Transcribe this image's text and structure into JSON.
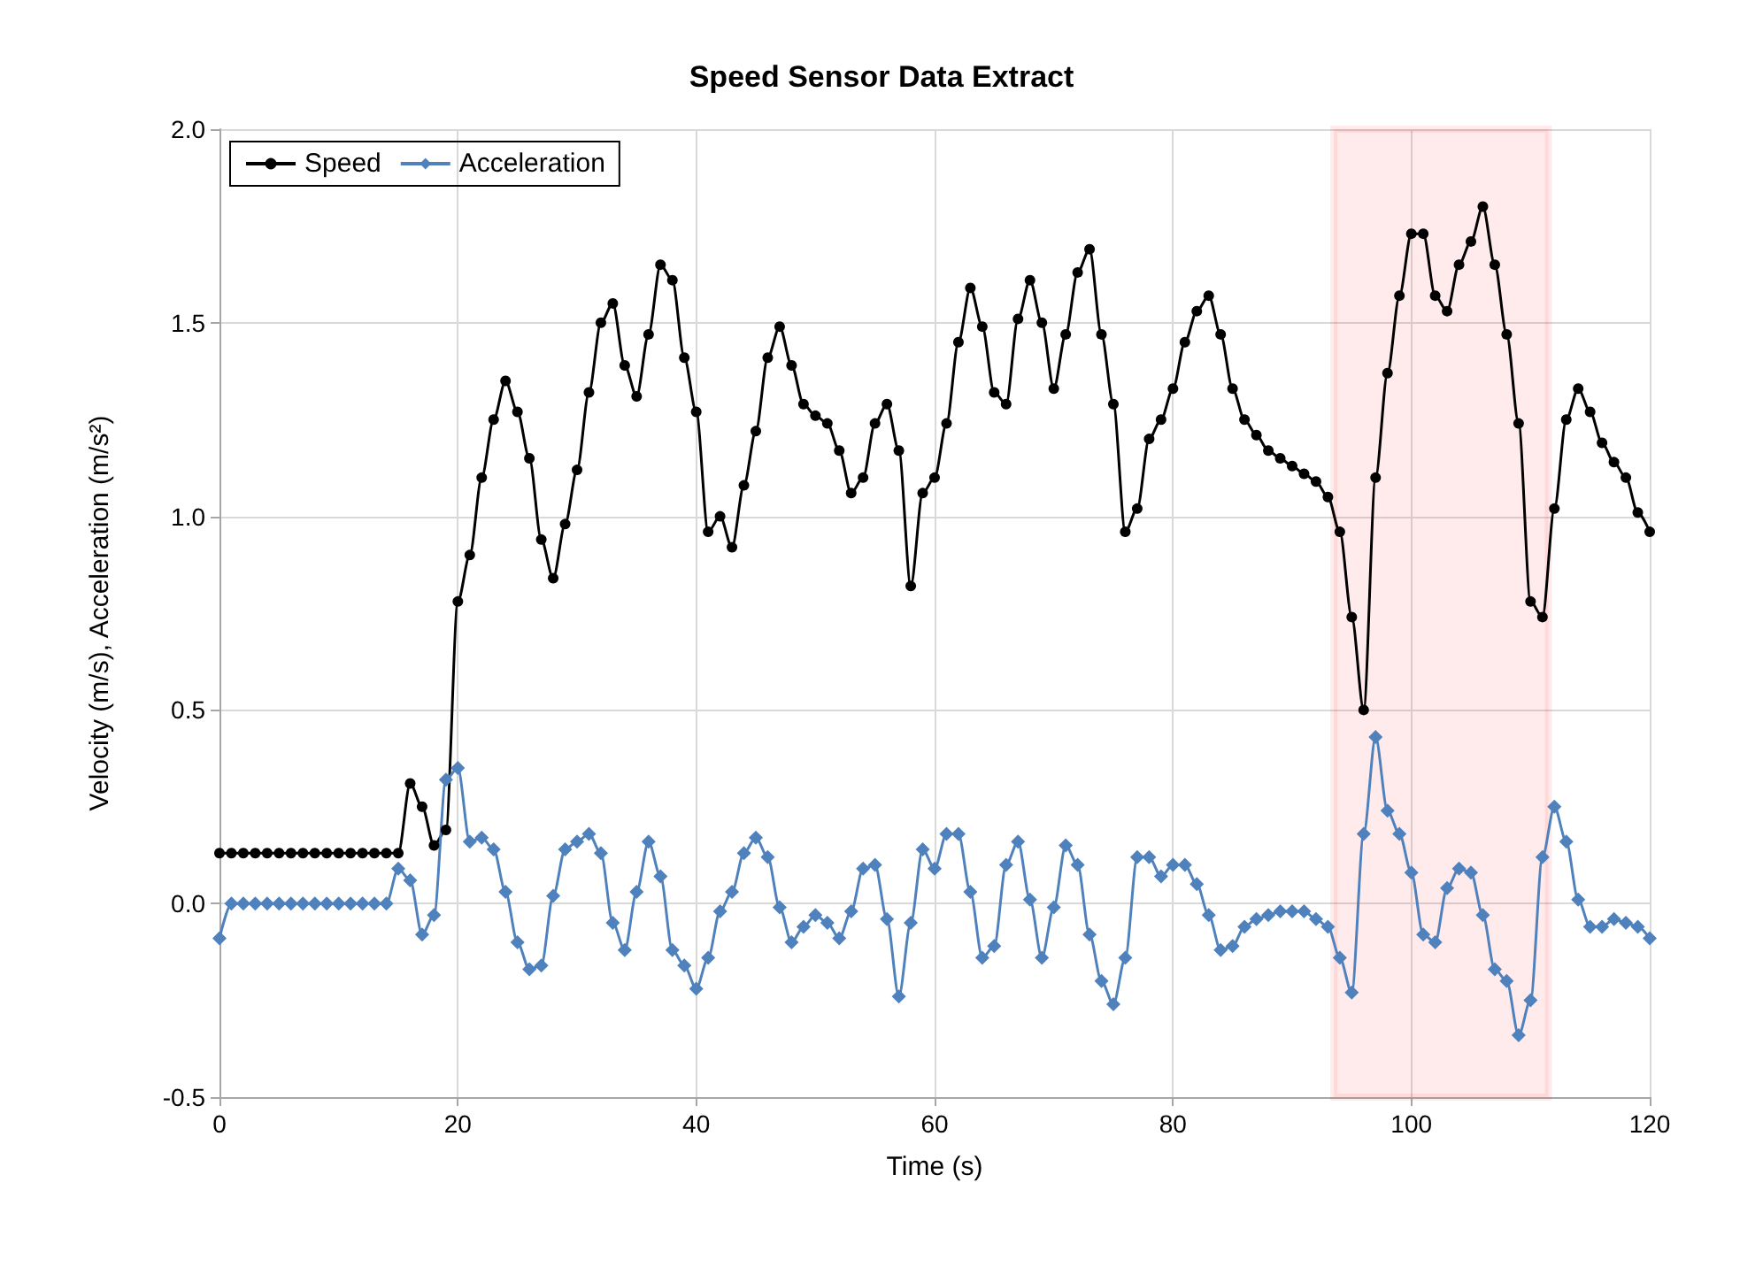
{
  "chart_data": {
    "type": "line",
    "title": "Speed Sensor Data Extract",
    "xlabel": "Time (s)",
    "ylabel": "Velocity (m/s), Acceleration (m/s²)",
    "x": [
      0,
      1,
      2,
      3,
      4,
      5,
      6,
      7,
      8,
      9,
      10,
      11,
      12,
      13,
      14,
      15,
      16,
      17,
      18,
      19,
      20,
      21,
      22,
      23,
      24,
      25,
      26,
      27,
      28,
      29,
      30,
      31,
      32,
      33,
      34,
      35,
      36,
      37,
      38,
      39,
      40,
      41,
      42,
      43,
      44,
      45,
      46,
      47,
      48,
      49,
      50,
      51,
      52,
      53,
      54,
      55,
      56,
      57,
      58,
      59,
      60,
      61,
      62,
      63,
      64,
      65,
      66,
      67,
      68,
      69,
      70,
      71,
      72,
      73,
      74,
      75,
      76,
      77,
      78,
      79,
      80,
      81,
      82,
      83,
      84,
      85,
      86,
      87,
      88,
      89,
      90,
      91,
      92,
      93,
      94,
      95,
      96,
      97,
      98,
      99,
      100,
      101,
      102,
      103,
      104,
      105,
      106,
      107,
      108,
      109,
      110,
      111,
      112,
      113,
      114,
      115,
      116,
      117,
      118,
      119,
      120
    ],
    "series": [
      {
        "name": "Speed",
        "color": "#000000",
        "marker": "circle",
        "values": [
          0.13,
          0.13,
          0.13,
          0.13,
          0.13,
          0.13,
          0.13,
          0.13,
          0.13,
          0.13,
          0.13,
          0.13,
          0.13,
          0.13,
          0.13,
          0.13,
          0.31,
          0.25,
          0.15,
          0.19,
          0.78,
          0.9,
          1.1,
          1.25,
          1.35,
          1.27,
          1.15,
          0.94,
          0.84,
          0.98,
          1.12,
          1.32,
          1.5,
          1.55,
          1.39,
          1.31,
          1.47,
          1.65,
          1.61,
          1.41,
          1.27,
          0.96,
          1.0,
          0.92,
          1.08,
          1.22,
          1.41,
          1.49,
          1.39,
          1.29,
          1.26,
          1.24,
          1.17,
          1.06,
          1.1,
          1.24,
          1.29,
          1.17,
          0.82,
          1.06,
          1.1,
          1.24,
          1.45,
          1.59,
          1.49,
          1.32,
          1.29,
          1.51,
          1.61,
          1.5,
          1.33,
          1.47,
          1.63,
          1.69,
          1.47,
          1.29,
          0.96,
          1.02,
          1.2,
          1.25,
          1.33,
          1.45,
          1.53,
          1.57,
          1.47,
          1.33,
          1.25,
          1.21,
          1.17,
          1.15,
          1.13,
          1.11,
          1.09,
          1.05,
          0.96,
          0.74,
          0.5,
          1.1,
          1.37,
          1.57,
          1.73,
          1.73,
          1.57,
          1.53,
          1.65,
          1.71,
          1.8,
          1.65,
          1.47,
          1.24,
          0.78,
          0.74,
          1.02,
          1.25,
          1.33,
          1.27,
          1.19,
          1.14,
          1.1,
          1.01,
          0.96
        ]
      },
      {
        "name": "Acceleration",
        "color": "#4f81bd",
        "marker": "diamond",
        "values": [
          -0.09,
          0,
          0,
          0,
          0,
          0,
          0,
          0,
          0,
          0,
          0,
          0,
          0,
          0,
          0,
          0.09,
          0.06,
          -0.08,
          -0.03,
          0.32,
          0.35,
          0.16,
          0.17,
          0.14,
          0.03,
          -0.1,
          -0.17,
          -0.16,
          0.02,
          0.14,
          0.16,
          0.18,
          0.13,
          -0.05,
          -0.12,
          0.03,
          0.16,
          0.07,
          -0.12,
          -0.16,
          -0.22,
          -0.14,
          -0.02,
          0.03,
          0.13,
          0.17,
          0.12,
          -0.01,
          -0.1,
          -0.06,
          -0.03,
          -0.05,
          -0.09,
          -0.02,
          0.09,
          0.1,
          -0.04,
          -0.24,
          -0.05,
          0.14,
          0.09,
          0.18,
          0.18,
          0.03,
          -0.14,
          -0.11,
          0.1,
          0.16,
          0.01,
          -0.14,
          -0.01,
          0.15,
          0.1,
          -0.08,
          -0.2,
          -0.26,
          -0.14,
          0.12,
          0.12,
          0.07,
          0.1,
          0.1,
          0.05,
          -0.03,
          -0.12,
          -0.11,
          -0.06,
          -0.04,
          -0.03,
          -0.02,
          -0.02,
          -0.02,
          -0.04,
          -0.06,
          -0.14,
          -0.23,
          0.18,
          0.43,
          0.24,
          0.18,
          0.08,
          -0.08,
          -0.1,
          0.04,
          0.09,
          0.08,
          -0.03,
          -0.17,
          -0.2,
          -0.34,
          -0.25,
          0.12,
          0.25,
          0.16,
          0.01,
          -0.06,
          -0.06,
          -0.04,
          -0.05,
          -0.06,
          -0.09
        ]
      }
    ],
    "xlim": [
      0,
      120
    ],
    "xticks": [
      0,
      20,
      40,
      60,
      80,
      100,
      120
    ],
    "ylim": [
      -0.5,
      2.0
    ],
    "yticks": [
      {
        "value": -0.5,
        "label": "-0.5"
      },
      {
        "value": 0,
        "label": "0.0"
      },
      {
        "value": 0.5,
        "label": "0.5"
      },
      {
        "value": 1,
        "label": "1.0"
      },
      {
        "value": 1.5,
        "label": "1.5"
      },
      {
        "value": 2,
        "label": "2.0"
      }
    ],
    "bands": [
      {
        "axis": "x",
        "from": 93.5,
        "to": 111.5,
        "color": "#ff0000"
      }
    ],
    "grid": true,
    "legend": "top left"
  }
}
